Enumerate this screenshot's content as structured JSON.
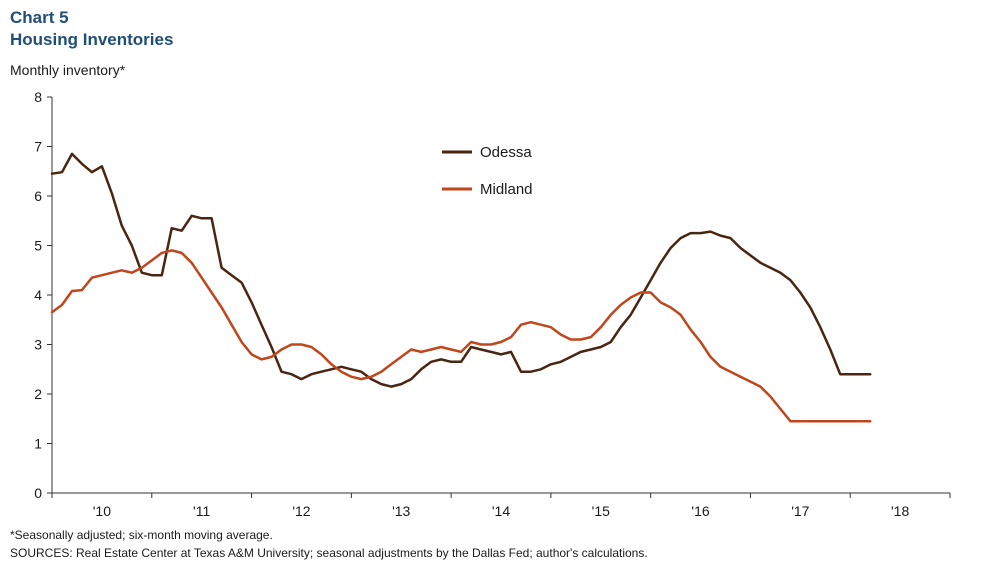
{
  "title": {
    "line1": "Chart 5",
    "line2": "Housing Inventories"
  },
  "chart_data": {
    "type": "line",
    "title": "Housing Inventories",
    "ylabel": "Monthly  inventory*",
    "xlabel": "",
    "ylim": [
      0,
      8
    ],
    "yticks": [
      0,
      1,
      2,
      3,
      4,
      5,
      6,
      7,
      8
    ],
    "xlim": [
      2009.5,
      2018.5
    ],
    "xticks": [
      {
        "value": 2010,
        "label": "'10"
      },
      {
        "value": 2011,
        "label": "'11"
      },
      {
        "value": 2012,
        "label": "'12"
      },
      {
        "value": 2013,
        "label": "'13"
      },
      {
        "value": 2014,
        "label": "'14"
      },
      {
        "value": 2015,
        "label": "'15"
      },
      {
        "value": 2016,
        "label": "'16"
      },
      {
        "value": 2017,
        "label": "'17"
      },
      {
        "value": 2018,
        "label": "'18"
      }
    ],
    "grid": false,
    "legend_position": "top-center",
    "series": [
      {
        "name": "Odessa",
        "color": "#4a2511",
        "x": [
          2009.5,
          2009.6,
          2009.7,
          2009.8,
          2009.9,
          2010.0,
          2010.1,
          2010.2,
          2010.3,
          2010.4,
          2010.5,
          2010.6,
          2010.7,
          2010.8,
          2010.9,
          2011.0,
          2011.1,
          2011.2,
          2011.3,
          2011.4,
          2011.5,
          2011.6,
          2011.7,
          2011.8,
          2011.9,
          2012.0,
          2012.1,
          2012.2,
          2012.3,
          2012.4,
          2012.5,
          2012.6,
          2012.7,
          2012.8,
          2012.9,
          2013.0,
          2013.1,
          2013.2,
          2013.3,
          2013.4,
          2013.5,
          2013.6,
          2013.7,
          2013.8,
          2013.9,
          2014.0,
          2014.1,
          2014.2,
          2014.3,
          2014.4,
          2014.5,
          2014.6,
          2014.7,
          2014.8,
          2014.9,
          2015.0,
          2015.1,
          2015.2,
          2015.3,
          2015.4,
          2015.5,
          2015.6,
          2015.7,
          2015.8,
          2015.9,
          2016.0,
          2016.1,
          2016.2,
          2016.3,
          2016.4,
          2016.5,
          2016.6,
          2016.7,
          2016.8,
          2016.9,
          2017.0,
          2017.1,
          2017.2,
          2017.3,
          2017.4,
          2017.5,
          2017.6,
          2017.7
        ],
        "values": [
          6.45,
          6.48,
          6.85,
          6.65,
          6.48,
          6.6,
          6.05,
          5.4,
          5.0,
          4.45,
          4.4,
          4.4,
          5.35,
          5.3,
          5.6,
          5.55,
          5.55,
          4.55,
          4.4,
          4.25,
          3.85,
          3.4,
          2.95,
          2.45,
          2.4,
          2.3,
          2.4,
          2.45,
          2.5,
          2.55,
          2.5,
          2.45,
          2.3,
          2.2,
          2.15,
          2.2,
          2.3,
          2.5,
          2.65,
          2.7,
          2.65,
          2.65,
          2.95,
          2.9,
          2.85,
          2.8,
          2.85,
          2.45,
          2.45,
          2.5,
          2.6,
          2.65,
          2.75,
          2.85,
          2.9,
          2.95,
          3.05,
          3.35,
          3.6,
          3.95,
          4.3,
          4.65,
          4.95,
          5.15,
          5.25,
          5.25,
          5.28,
          5.2,
          5.15,
          4.95,
          4.8,
          4.65,
          4.55,
          4.45,
          4.3,
          4.05,
          3.75,
          3.35,
          2.9,
          2.4,
          2.4,
          2.4,
          2.4
        ]
      },
      {
        "name": "Midland",
        "color": "#c0461b",
        "x": [
          2009.5,
          2009.6,
          2009.7,
          2009.8,
          2009.9,
          2010.0,
          2010.1,
          2010.2,
          2010.3,
          2010.4,
          2010.5,
          2010.6,
          2010.7,
          2010.8,
          2010.9,
          2011.0,
          2011.1,
          2011.2,
          2011.3,
          2011.4,
          2011.5,
          2011.6,
          2011.7,
          2011.8,
          2011.9,
          2012.0,
          2012.1,
          2012.2,
          2012.3,
          2012.4,
          2012.5,
          2012.6,
          2012.7,
          2012.8,
          2012.9,
          2013.0,
          2013.1,
          2013.2,
          2013.3,
          2013.4,
          2013.5,
          2013.6,
          2013.7,
          2013.8,
          2013.9,
          2014.0,
          2014.1,
          2014.2,
          2014.3,
          2014.4,
          2014.5,
          2014.6,
          2014.7,
          2014.8,
          2014.9,
          2015.0,
          2015.1,
          2015.2,
          2015.3,
          2015.4,
          2015.5,
          2015.6,
          2015.7,
          2015.8,
          2015.9,
          2016.0,
          2016.1,
          2016.2,
          2016.3,
          2016.4,
          2016.5,
          2016.6,
          2016.7,
          2016.8,
          2016.9,
          2017.0,
          2017.1,
          2017.2,
          2017.3,
          2017.4,
          2017.5,
          2017.6,
          2017.7
        ],
        "values": [
          3.65,
          3.8,
          4.08,
          4.1,
          4.35,
          4.4,
          4.45,
          4.5,
          4.45,
          4.55,
          4.7,
          4.85,
          4.9,
          4.85,
          4.65,
          4.35,
          4.05,
          3.75,
          3.4,
          3.05,
          2.8,
          2.7,
          2.75,
          2.9,
          3.0,
          3.0,
          2.95,
          2.8,
          2.6,
          2.45,
          2.35,
          2.3,
          2.35,
          2.45,
          2.6,
          2.75,
          2.9,
          2.85,
          2.9,
          2.95,
          2.9,
          2.85,
          3.05,
          3.0,
          3.0,
          3.05,
          3.15,
          3.4,
          3.45,
          3.4,
          3.35,
          3.2,
          3.1,
          3.1,
          3.15,
          3.35,
          3.6,
          3.8,
          3.95,
          4.05,
          4.05,
          3.85,
          3.75,
          3.6,
          3.3,
          3.05,
          2.75,
          2.55,
          2.45,
          2.35,
          2.25,
          2.15,
          1.95,
          1.7,
          1.45,
          1.45,
          1.45,
          1.45,
          1.45,
          1.45,
          1.45,
          1.45,
          1.45
        ]
      }
    ]
  },
  "footnotes": {
    "note": "*Seasonally adjusted; six-month moving average.",
    "sources": "SOURCES: Real Estate Center at Texas A&M University; seasonal adjustments by the Dallas Fed; author's calculations."
  }
}
